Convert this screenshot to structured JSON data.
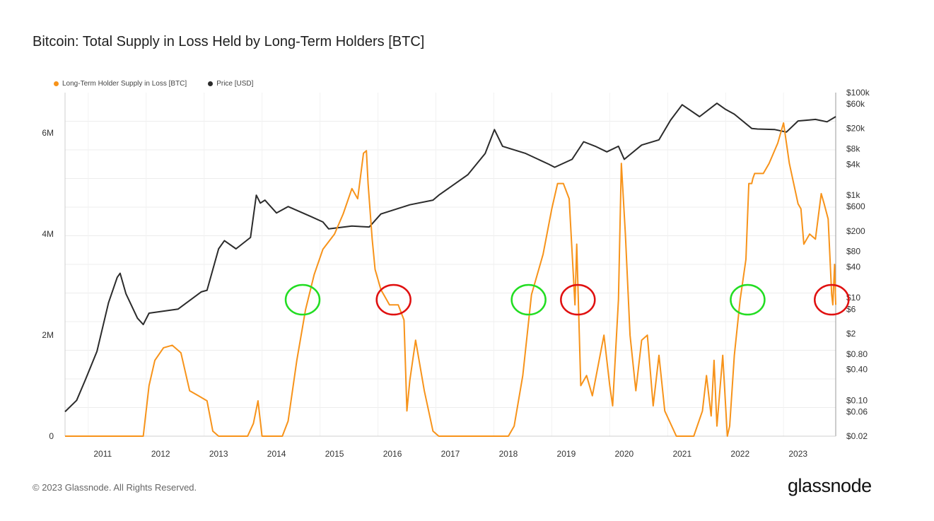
{
  "header": {
    "title": "Bitcoin: Total Supply in Loss Held by Long-Term Holders [BTC]"
  },
  "footer": {
    "copyright": "© 2023 Glassnode. All Rights Reserved.",
    "brand": "glassnode"
  },
  "colors": {
    "supply": "#f7931a",
    "price": "#2b2b2b",
    "grid": "#ececec",
    "green": "#22dd22",
    "red": "#e01010",
    "axis": "#cfcfcf"
  },
  "chart_data": {
    "type": "line",
    "title": "Bitcoin: Total Supply in Loss Held by Long-Term Holders [BTC]",
    "legend": {
      "placement": "top-left"
    },
    "grid": true,
    "x_axis": {
      "tick_labels": [
        "2011",
        "2012",
        "2013",
        "2014",
        "2015",
        "2016",
        "2017",
        "2018",
        "2019",
        "2020",
        "2021",
        "2022",
        "2023"
      ],
      "range": [
        2010.55,
        2023.85
      ]
    },
    "y_left": {
      "tick_labels": [
        "0",
        "2M",
        "4M",
        "6M"
      ],
      "ticks": [
        0,
        2000000,
        4000000,
        6000000
      ],
      "range": [
        0,
        6800000
      ]
    },
    "y_right": {
      "scale": "log",
      "tick_labels": [
        "$0.02",
        "$0.06",
        "$0.10",
        "$0.40",
        "$0.80",
        "$2",
        "$6",
        "$10",
        "$40",
        "$80",
        "$200",
        "$600",
        "$1k",
        "$4k",
        "$8k",
        "$20k",
        "$60k",
        "$100k"
      ],
      "ticks": [
        0.02,
        0.06,
        0.1,
        0.4,
        0.8,
        2,
        6,
        10,
        40,
        80,
        200,
        600,
        1000,
        4000,
        8000,
        20000,
        60000,
        100000
      ],
      "range": [
        0.02,
        100000
      ]
    },
    "series": [
      {
        "name": "Long-Term Holder Supply in Loss [BTC]",
        "axis": "left",
        "x": [
          2010.55,
          2011.9,
          2012.0,
          2012.1,
          2012.25,
          2012.4,
          2012.55,
          2012.7,
          2012.85,
          2013.0,
          2013.05,
          2013.1,
          2013.2,
          2013.7,
          2013.8,
          2013.88,
          2013.95,
          2014.3,
          2014.4,
          2014.55,
          2014.7,
          2014.85,
          2015.0,
          2015.2,
          2015.35,
          2015.5,
          2015.6,
          2015.7,
          2015.75,
          2015.78,
          2015.85,
          2015.9,
          2016.0,
          2016.05,
          2016.15,
          2016.3,
          2016.4,
          2016.45,
          2016.5,
          2016.6,
          2016.75,
          2016.9,
          2017.0,
          2018.2,
          2018.3,
          2018.45,
          2018.6,
          2018.8,
          2018.95,
          2019.05,
          2019.15,
          2019.25,
          2019.35,
          2019.38,
          2019.45,
          2019.55,
          2019.65,
          2019.75,
          2019.85,
          2019.95,
          2020.0,
          2020.1,
          2020.15,
          2020.22,
          2020.3,
          2020.4,
          2020.5,
          2020.6,
          2020.7,
          2020.8,
          2020.9,
          2021.1,
          2021.4,
          2021.55,
          2021.62,
          2021.7,
          2021.75,
          2021.8,
          2021.9,
          2021.98,
          2022.02,
          2022.1,
          2022.2,
          2022.3,
          2022.35,
          2022.4,
          2022.42,
          2022.45,
          2022.6,
          2022.7,
          2022.85,
          2022.95,
          2023.05,
          2023.2,
          2023.25,
          2023.3,
          2023.4,
          2023.5,
          2023.6,
          2023.65,
          2023.72,
          2023.78,
          2023.8,
          2023.83,
          2023.85
        ],
        "y": [
          0,
          0,
          1000000,
          1500000,
          1750000,
          1800000,
          1650000,
          900000,
          800000,
          700000,
          400000,
          100000,
          0,
          0,
          250000,
          700000,
          0,
          0,
          300000,
          1500000,
          2500000,
          3200000,
          3700000,
          4000000,
          4400000,
          4900000,
          4700000,
          5600000,
          5650000,
          5000000,
          3900000,
          3300000,
          2900000,
          2800000,
          2600000,
          2600000,
          2300000,
          500000,
          1100000,
          1900000,
          900000,
          100000,
          0,
          0,
          200000,
          1200000,
          2800000,
          3600000,
          4500000,
          5000000,
          5000000,
          4700000,
          2600000,
          3800000,
          1000000,
          1200000,
          800000,
          1400000,
          2000000,
          1000000,
          600000,
          2700000,
          5400000,
          4000000,
          2000000,
          900000,
          1900000,
          2000000,
          600000,
          1600000,
          500000,
          0,
          0,
          500000,
          1200000,
          400000,
          1500000,
          200000,
          1600000,
          0,
          200000,
          1600000,
          2700000,
          3500000,
          5000000,
          5000000,
          5100000,
          5200000,
          5200000,
          5400000,
          5800000,
          6200000,
          5400000,
          4600000,
          4500000,
          3800000,
          4000000,
          3900000,
          4800000,
          4600000,
          4300000,
          2800000,
          2600000,
          3400000,
          2600000
        ]
      },
      {
        "name": "Price [USD]",
        "axis": "right",
        "x": [
          2010.55,
          2010.75,
          2010.9,
          2011.1,
          2011.3,
          2011.45,
          2011.5,
          2011.6,
          2011.8,
          2011.9,
          2012.0,
          2012.5,
          2012.9,
          2013.0,
          2013.2,
          2013.3,
          2013.5,
          2013.75,
          2013.85,
          2013.92,
          2014.0,
          2014.2,
          2014.4,
          2014.8,
          2015.0,
          2015.1,
          2015.5,
          2015.8,
          2016.0,
          2016.5,
          2016.9,
          2017.0,
          2017.5,
          2017.8,
          2017.96,
          2018.1,
          2018.5,
          2018.9,
          2019.0,
          2019.3,
          2019.5,
          2019.7,
          2019.9,
          2020.1,
          2020.2,
          2020.5,
          2020.8,
          2021.0,
          2021.2,
          2021.5,
          2021.8,
          2021.95,
          2022.1,
          2022.4,
          2022.5,
          2022.8,
          2023.0,
          2023.2,
          2023.5,
          2023.7,
          2023.85
        ],
        "y": [
          0.06,
          0.1,
          0.25,
          0.9,
          8,
          25,
          30,
          12,
          4,
          3,
          5,
          6,
          13,
          14,
          90,
          130,
          90,
          150,
          1000,
          700,
          800,
          450,
          600,
          380,
          300,
          220,
          250,
          240,
          430,
          650,
          800,
          1000,
          2500,
          6500,
          19000,
          9000,
          6500,
          4000,
          3500,
          5000,
          11000,
          9000,
          7000,
          9000,
          5000,
          9500,
          12000,
          29000,
          58000,
          34000,
          62000,
          47000,
          38000,
          20000,
          19500,
          19000,
          17000,
          28000,
          30000,
          27000,
          34000
        ]
      }
    ]
  },
  "annotations": [
    {
      "color": "green",
      "x": 2014.65,
      "y": 2700000
    },
    {
      "color": "red",
      "x": 2016.22,
      "y": 2700000
    },
    {
      "color": "green",
      "x": 2018.55,
      "y": 2700000
    },
    {
      "color": "red",
      "x": 2019.4,
      "y": 2700000
    },
    {
      "color": "green",
      "x": 2022.33,
      "y": 2700000
    },
    {
      "color": "red",
      "x": 2023.78,
      "y": 2700000
    }
  ]
}
